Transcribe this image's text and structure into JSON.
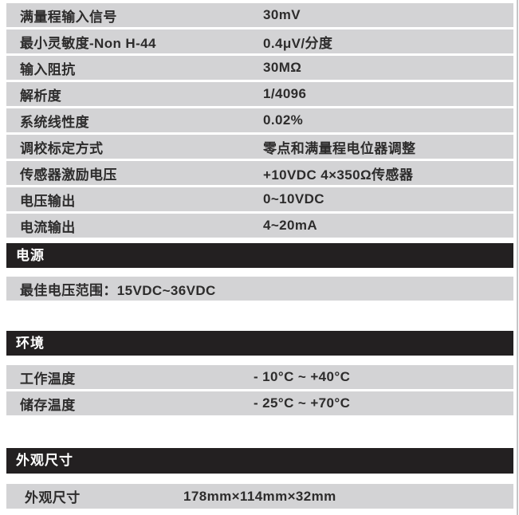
{
  "colors": {
    "row_background": "#d3d3d5",
    "section_bar_background": "#232021",
    "section_bar_text": "#ffffff",
    "row_text": "#2d2c2c",
    "page_edge_line": "#c5c5c7"
  },
  "specs": {
    "rows": [
      {
        "label": "满量程输入信号",
        "value": "30mV"
      },
      {
        "label": "最小灵敏度-Non H-44",
        "value": "0.4μV/分度"
      },
      {
        "label": "输入阻抗",
        "value": "30MΩ"
      },
      {
        "label": "解析度",
        "value": "1/4096"
      },
      {
        "label": "系统线性度",
        "value": "0.02%"
      },
      {
        "label": "调校标定方式",
        "value": "零点和满量程电位器调整"
      },
      {
        "label": "传感器激励电压",
        "value": "+10VDC  4×350Ω传感器"
      },
      {
        "label": "电压输出",
        "value": "0~10VDC"
      },
      {
        "label": "电流输出",
        "value": "4~20mA"
      }
    ]
  },
  "power": {
    "title": "电源",
    "row": {
      "text": "最佳电压范围：15VDC~36VDC"
    }
  },
  "environment": {
    "title": "环境",
    "rows": [
      {
        "label": "工作温度",
        "value": "- 10°C  ~  +40°C"
      },
      {
        "label": "储存温度",
        "value": "- 25°C  ~  +70°C"
      }
    ]
  },
  "dimensions": {
    "title": "外观尺寸",
    "row": {
      "label": "外观尺寸",
      "value": "178mm×114mm×32mm"
    }
  }
}
